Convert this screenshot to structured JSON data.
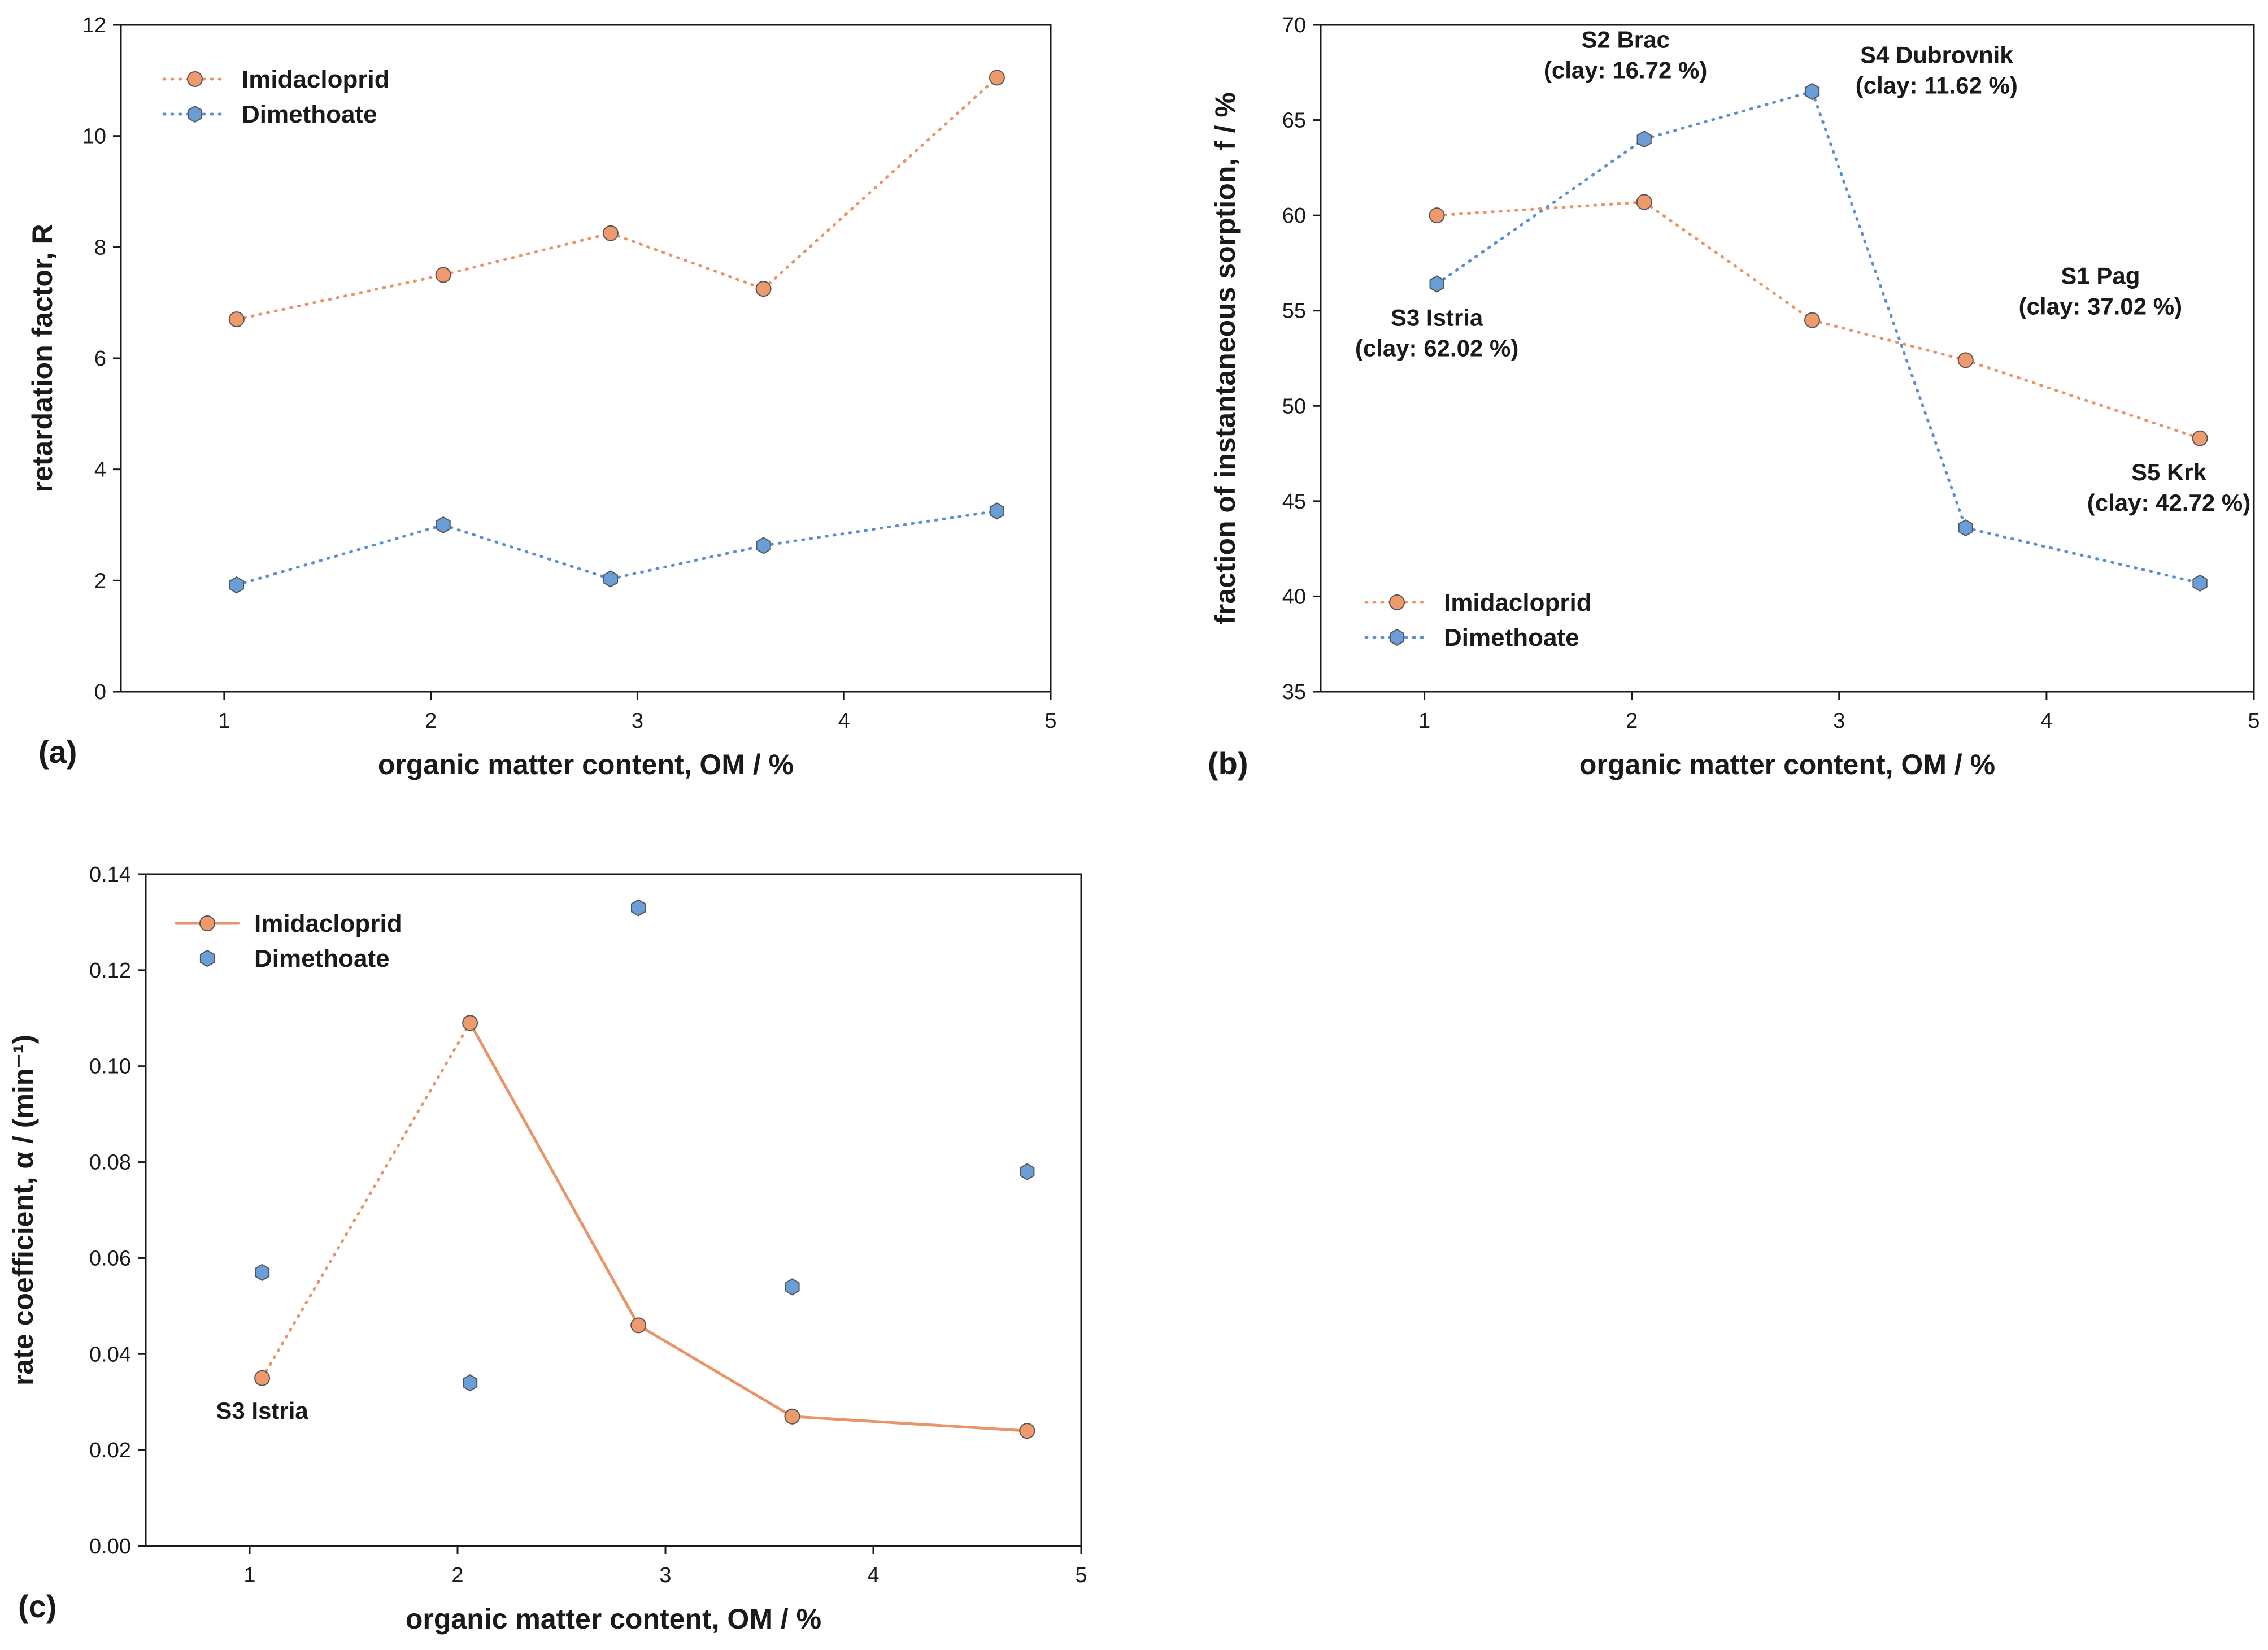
{
  "colors": {
    "imidacloprid": "#E8956A",
    "imidacloprid_marker": "#EE9A6C",
    "dimethoate": "#5B8FD4",
    "dimethoate_marker": "#6A9ED8",
    "marker_edge": "#555555"
  },
  "chart_data": [
    {
      "id": "a",
      "panel_label": "(a)",
      "type": "line",
      "xlabel": "organic matter content, OM / %",
      "ylabel": "retardation factor, R",
      "xlim": [
        0.5,
        5
      ],
      "ylim": [
        0,
        12
      ],
      "xticks": [
        1,
        2,
        3,
        4,
        5
      ],
      "yticks": [
        0,
        2,
        4,
        6,
        8,
        10,
        12
      ],
      "ytick_decimals": 0,
      "legend_position": "top-left",
      "series": [
        {
          "name": "Imidacloprid",
          "color_key": "imidacloprid",
          "line": "dotted",
          "marker": "circle",
          "x": [
            1.06,
            2.06,
            2.87,
            3.61,
            4.74
          ],
          "y": [
            6.7,
            7.5,
            8.25,
            7.25,
            11.05
          ]
        },
        {
          "name": "Dimethoate",
          "color_key": "dimethoate",
          "line": "dotted",
          "marker": "hexagon",
          "x": [
            1.06,
            2.06,
            2.87,
            3.61,
            4.74
          ],
          "y": [
            1.92,
            3.0,
            2.03,
            2.63,
            3.25
          ]
        }
      ],
      "annotations": []
    },
    {
      "id": "b",
      "panel_label": "(b)",
      "type": "line",
      "xlabel": "organic matter content, OM / %",
      "ylabel": "fraction of instantaneous sorption, f / %",
      "xlim": [
        0.5,
        5
      ],
      "ylim": [
        35,
        70
      ],
      "xticks": [
        1,
        2,
        3,
        4,
        5
      ],
      "yticks": [
        35,
        40,
        45,
        50,
        55,
        60,
        65,
        70
      ],
      "ytick_decimals": 0,
      "legend_position": "bottom-left",
      "series": [
        {
          "name": "Imidacloprid",
          "color_key": "imidacloprid",
          "line": "dotted",
          "marker": "circle",
          "x": [
            1.06,
            2.06,
            2.87,
            3.61,
            4.74
          ],
          "y": [
            60.0,
            60.7,
            54.5,
            52.4,
            48.3
          ]
        },
        {
          "name": "Dimethoate",
          "color_key": "dimethoate",
          "line": "dotted",
          "marker": "hexagon",
          "x": [
            1.06,
            2.06,
            2.87,
            3.61,
            4.74
          ],
          "y": [
            56.4,
            64.0,
            66.5,
            43.6,
            40.7
          ]
        }
      ],
      "annotations": [
        {
          "lines": [
            "S3 Istria",
            "(clay: 62.02 %)"
          ],
          "x": 1.06,
          "y": 54.2,
          "anchor": "middle"
        },
        {
          "lines": [
            "S2 Brac",
            "(clay: 16.72 %)"
          ],
          "x": 1.97,
          "y": 68.8,
          "anchor": "middle"
        },
        {
          "lines": [
            "S4 Dubrovnik",
            "(clay: 11.62 %)"
          ],
          "x": 3.47,
          "y": 68.0,
          "anchor": "middle"
        },
        {
          "lines": [
            "S1 Pag",
            "(clay: 37.02 %)"
          ],
          "x": 4.26,
          "y": 56.4,
          "anchor": "middle"
        },
        {
          "lines": [
            "S5 Krk",
            "(clay: 42.72 %)"
          ],
          "x": 4.59,
          "y": 46.1,
          "anchor": "middle"
        }
      ]
    },
    {
      "id": "c",
      "panel_label": "(c)",
      "type": "line",
      "xlabel": "organic matter content, OM / %",
      "ylabel": "rate coefficient, α / (min⁻¹)",
      "xlim": [
        0.5,
        5
      ],
      "ylim": [
        0,
        0.14
      ],
      "xticks": [
        1,
        2,
        3,
        4,
        5
      ],
      "yticks": [
        0.0,
        0.02,
        0.04,
        0.06,
        0.08,
        0.1,
        0.12,
        0.14
      ],
      "ytick_decimals": 2,
      "legend_position": "top-left",
      "series": [
        {
          "name": "Imidacloprid",
          "color_key": "imidacloprid",
          "line": "solid",
          "marker": "circle",
          "x": [
            1.06,
            2.06,
            2.87,
            3.61,
            4.74
          ],
          "y": [
            0.035,
            0.109,
            0.046,
            0.027,
            0.024
          ],
          "dotted_segments": [
            0
          ]
        },
        {
          "name": "Dimethoate",
          "color_key": "dimethoate",
          "line": "none",
          "marker": "hexagon",
          "x": [
            1.06,
            2.06,
            2.87,
            3.61,
            4.74
          ],
          "y": [
            0.057,
            0.034,
            0.133,
            0.054,
            0.078
          ]
        }
      ],
      "annotations": [
        {
          "lines": [
            "S3 Istria"
          ],
          "x": 1.06,
          "y": 0.0265,
          "anchor": "middle"
        }
      ]
    }
  ]
}
